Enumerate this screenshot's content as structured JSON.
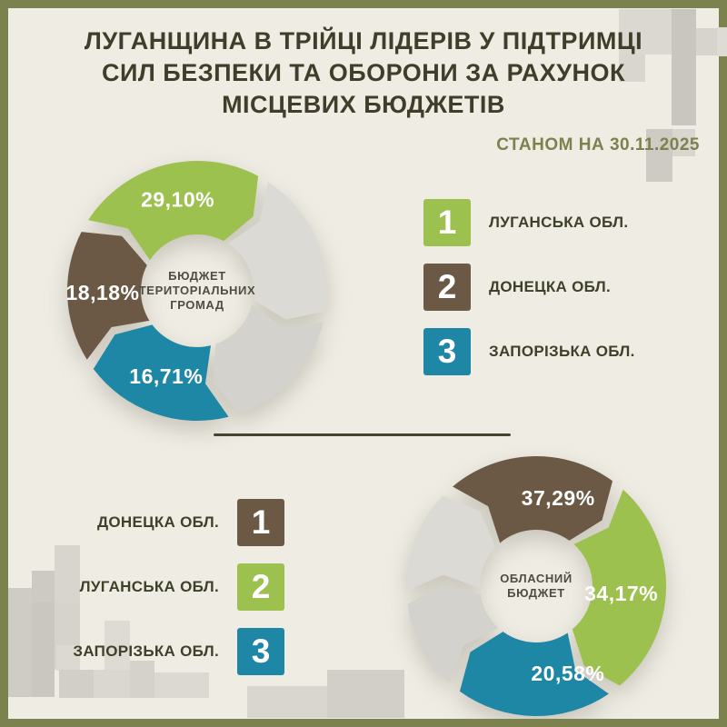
{
  "title": {
    "lines": [
      "ЛУГАНЩИНА В ТРІЙЦІ ЛІДЕРІВ У ПІДТРИМЦІ",
      "СИЛ БЕЗПЕКИ ТА ОБОРОНИ ЗА РАХУНОК",
      "МІСЦЕВИХ БЮДЖЕТІВ"
    ]
  },
  "date_label": "СТАНОМ НА 30.11.2025",
  "colors": {
    "green": "#9dc14e",
    "brown": "#6c5945",
    "teal": "#1e87a6",
    "gray_light": "#dcdad5",
    "gray_dark": "#d4d2cc",
    "background": "#efece4",
    "border_olive": "#7b824e",
    "title_text": "#403d2a",
    "label_text": "#3e412a",
    "percent_text": "#ffffff"
  },
  "chart_data": [
    {
      "type": "pie",
      "variant": "donut-cycle-arrows",
      "title": "БЮДЖЕТ ТЕРИТОРІАЛЬНИХ ГРОМАД",
      "center_lines": [
        "БЮДЖЕТ",
        "ТЕРИТОРІАЛЬНИХ",
        "ГРОМАД"
      ],
      "legend_position": "right",
      "series": [
        {
          "name": "ЛУГАНСЬКА ОБЛ.",
          "value": 29.1,
          "label": "29,10%",
          "color": "green"
        },
        {
          "name": "ДОНЕЦКА ОБЛ.",
          "value": 18.18,
          "label": "18,18%",
          "color": "brown"
        },
        {
          "name": "ЗАПОРІЗЬКА ОБЛ.",
          "value": 16.71,
          "label": "16,71%",
          "color": "teal"
        }
      ],
      "other_segments_color": "gray"
    },
    {
      "type": "pie",
      "variant": "donut-cycle-arrows",
      "title": "ОБЛАСНИЙ БЮДЖЕТ",
      "center_lines": [
        "ОБЛАСНИЙ",
        "БЮДЖЕТ"
      ],
      "legend_position": "left",
      "series": [
        {
          "name": "ДОНЕЦКА ОБЛ.",
          "value": 37.29,
          "label": "37,29%",
          "color": "brown"
        },
        {
          "name": "ЛУГАНСЬКА ОБЛ.",
          "value": 34.17,
          "label": "34,17%",
          "color": "green"
        },
        {
          "name": "ЗАПОРІЗЬКА ОБЛ.",
          "value": 20.58,
          "label": "20,58%",
          "color": "teal"
        }
      ],
      "other_segments_color": "gray"
    }
  ],
  "rankings": [
    {
      "items": [
        {
          "rank": "1",
          "color": "green",
          "label": "ЛУГАНСЬКА ОБЛ."
        },
        {
          "rank": "2",
          "color": "brown",
          "label": "ДОНЕЦКА ОБЛ."
        },
        {
          "rank": "3",
          "color": "teal",
          "label": "ЗАПОРІЗЬКА ОБЛ."
        }
      ]
    },
    {
      "items": [
        {
          "rank": "1",
          "color": "brown",
          "label": "ДОНЕЦКА ОБЛ."
        },
        {
          "rank": "2",
          "color": "green",
          "label": "ЛУГАНСЬКА ОБЛ."
        },
        {
          "rank": "3",
          "color": "teal",
          "label": "ЗАПОРІЗЬКА ОБЛ."
        }
      ]
    }
  ]
}
